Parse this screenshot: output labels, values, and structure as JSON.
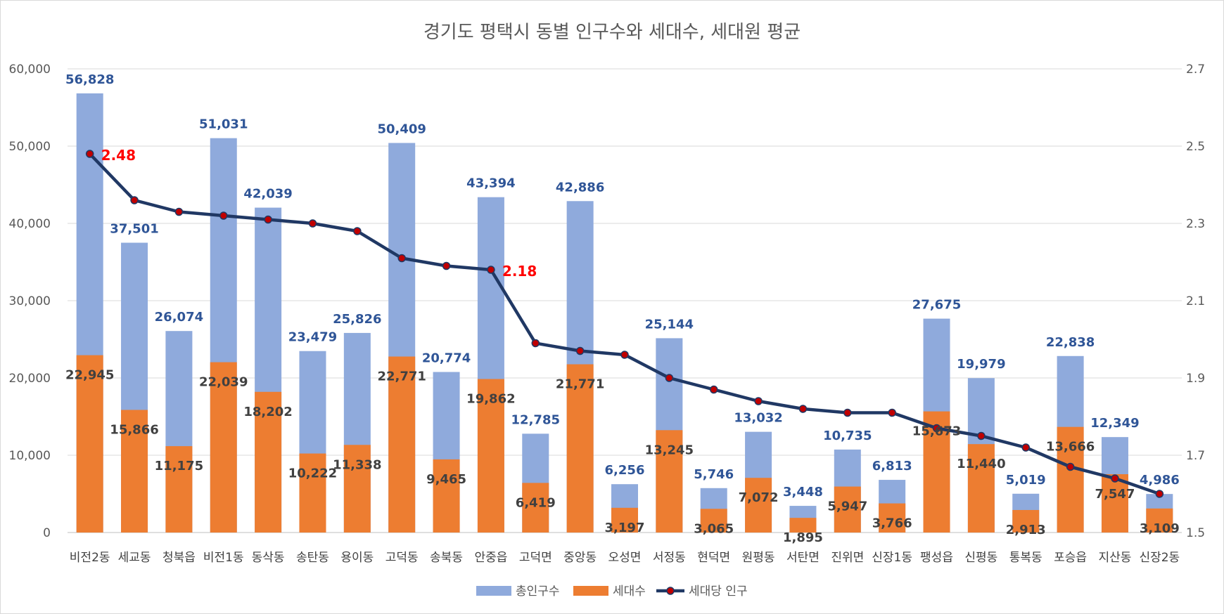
{
  "chart_data": {
    "type": "bar",
    "title": "경기도 평택시 동별 인구수와 세대수, 세대원 평균",
    "categories": [
      "비전2동",
      "세교동",
      "청북읍",
      "비전1동",
      "동삭동",
      "송탄동",
      "용이동",
      "고덕동",
      "송북동",
      "안중읍",
      "고덕면",
      "중앙동",
      "오성면",
      "서정동",
      "현덕면",
      "원평동",
      "서탄면",
      "진위면",
      "신장1동",
      "팽성읍",
      "신평동",
      "통복동",
      "포승읍",
      "지산동",
      "신장2동"
    ],
    "series": [
      {
        "name": "총인구수",
        "type": "bar",
        "axis": "left",
        "color": "#8faadc",
        "values": [
          56828,
          37501,
          26074,
          51031,
          42039,
          23479,
          25826,
          50409,
          20774,
          43394,
          12785,
          42886,
          6256,
          25144,
          5746,
          13032,
          3448,
          10735,
          6813,
          27675,
          19979,
          5019,
          22838,
          12349,
          4986
        ]
      },
      {
        "name": "세대수",
        "type": "bar",
        "axis": "left",
        "color": "#ed7d31",
        "values": [
          22945,
          15866,
          11175,
          22039,
          18202,
          10222,
          11338,
          22771,
          9465,
          19862,
          6419,
          21771,
          3197,
          13245,
          3065,
          7072,
          1895,
          5947,
          3766,
          15673,
          11440,
          2913,
          13666,
          7547,
          3109
        ]
      },
      {
        "name": "세대당 인구",
        "type": "line",
        "axis": "right",
        "color": "#203864",
        "marker_color": "#c00000",
        "values": [
          2.48,
          2.36,
          2.33,
          2.32,
          2.31,
          2.3,
          2.28,
          2.21,
          2.19,
          2.18,
          1.99,
          1.97,
          1.96,
          1.9,
          1.87,
          1.84,
          1.82,
          1.81,
          1.81,
          1.77,
          1.75,
          1.72,
          1.67,
          1.64,
          1.6
        ]
      }
    ],
    "highlight_labels": [
      {
        "index": 0,
        "text": "2.48"
      },
      {
        "index": 9,
        "text": "2.18"
      }
    ],
    "y_left": {
      "min": 0,
      "max": 60000,
      "ticks": [
        "0",
        "10,000",
        "20,000",
        "30,000",
        "40,000",
        "50,000",
        "60,000"
      ]
    },
    "y_right": {
      "min": 1.5,
      "max": 2.7,
      "ticks": [
        "1.5",
        "1.7",
        "1.9",
        "2.1",
        "2.3",
        "2.5",
        "2.7"
      ]
    },
    "grid": true,
    "legend_position": "bottom",
    "colors": {
      "total": "#8faadc",
      "household": "#ed7d31",
      "line": "#203864",
      "marker": "#c00000",
      "total_label": "#2f5597",
      "household_label": "#404040",
      "highlight": "#ff0000"
    }
  }
}
